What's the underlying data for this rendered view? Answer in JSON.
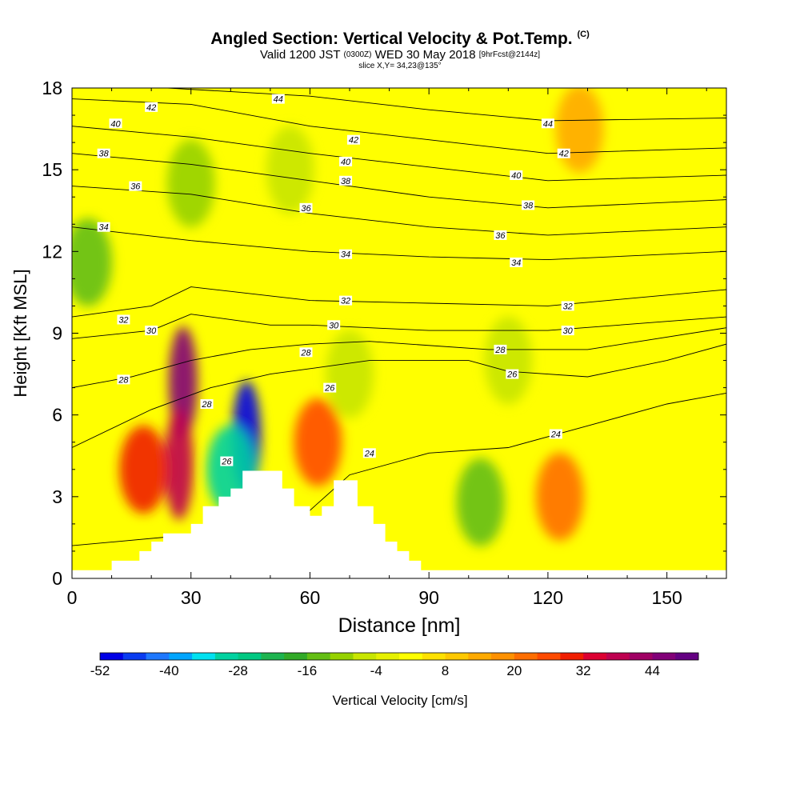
{
  "title": {
    "main": "Angled Section: Vertical Velocity & Pot.Temp.",
    "copyright": "(C)",
    "valid_prefix": "Valid 1200 JST",
    "utc_time": "(0300Z)",
    "valid_date": "WED 30 May 2018",
    "forecast": "[9hrFcst@2144z]",
    "slice": "slice X,Y= 34,23@135°"
  },
  "chart_data": {
    "type": "heatmap",
    "xlabel": "Distance [nm]",
    "ylabel": "Height [Kft MSL]",
    "xlim": [
      0,
      165
    ],
    "ylim": [
      0,
      18
    ],
    "x_ticks": [
      0,
      30,
      60,
      90,
      120,
      150
    ],
    "y_ticks": [
      0,
      3,
      6,
      9,
      12,
      15,
      18
    ],
    "colorbar": {
      "label": "Vertical Velocity [cm/s]",
      "ticks": [
        "-52",
        "-40",
        "-28",
        "-16",
        "-4",
        "8",
        "20",
        "32",
        "44"
      ],
      "colors": [
        "#0000e6",
        "#0a3cf0",
        "#1e78ff",
        "#00a5ff",
        "#00e1f0",
        "#00d2a0",
        "#00c882",
        "#1eb450",
        "#32aa28",
        "#64be14",
        "#96d200",
        "#c8e600",
        "#e6f000",
        "#ffff00",
        "#ffe100",
        "#ffc800",
        "#ffaa00",
        "#ff9100",
        "#ff6e00",
        "#ff4b00",
        "#f01e00",
        "#dc0032",
        "#be0050",
        "#a00064",
        "#820078",
        "#640082"
      ]
    },
    "velocity_features": [
      {
        "x": 4,
        "y": 11.6,
        "value": -14
      },
      {
        "x": 28,
        "y": 7.2,
        "value": 46
      },
      {
        "x": 27,
        "y": 4.2,
        "value": 36
      },
      {
        "x": 18,
        "y": 4.0,
        "value": 28
      },
      {
        "x": 44,
        "y": 5.2,
        "value": -52
      },
      {
        "x": 40,
        "y": 4.0,
        "value": -30
      },
      {
        "x": 62,
        "y": 5.0,
        "value": 24
      },
      {
        "x": 70,
        "y": 7.5,
        "value": -8
      },
      {
        "x": 103,
        "y": 2.8,
        "value": -14
      },
      {
        "x": 123,
        "y": 3.0,
        "value": 22
      },
      {
        "x": 110,
        "y": 8.0,
        "value": -8
      },
      {
        "x": 128,
        "y": 16.5,
        "value": 14
      },
      {
        "x": 30,
        "y": 14.5,
        "value": -10
      },
      {
        "x": 55,
        "y": 15.0,
        "value": -8
      }
    ],
    "isentropes": [
      {
        "value": 24,
        "points": [
          [
            0,
            1.2
          ],
          [
            30,
            1.6
          ],
          [
            60,
            2.5
          ],
          [
            70,
            3.8
          ],
          [
            90,
            4.6
          ],
          [
            110,
            4.8
          ],
          [
            130,
            5.6
          ],
          [
            150,
            6.4
          ],
          [
            165,
            6.8
          ]
        ]
      },
      {
        "value": 26,
        "points": [
          [
            0,
            4.8
          ],
          [
            20,
            6.2
          ],
          [
            35,
            7.0
          ],
          [
            50,
            7.5
          ],
          [
            60,
            7.7
          ],
          [
            75,
            8.0
          ],
          [
            100,
            8.0
          ],
          [
            110,
            7.6
          ],
          [
            130,
            7.4
          ],
          [
            150,
            8.0
          ],
          [
            165,
            8.6
          ]
        ]
      },
      {
        "value": 28,
        "points": [
          [
            0,
            7.0
          ],
          [
            15,
            7.4
          ],
          [
            30,
            8.0
          ],
          [
            45,
            8.4
          ],
          [
            60,
            8.6
          ],
          [
            75,
            8.7
          ],
          [
            105,
            8.4
          ],
          [
            130,
            8.4
          ],
          [
            165,
            9.2
          ]
        ]
      },
      {
        "value": 30,
        "points": [
          [
            0,
            8.8
          ],
          [
            20,
            9.1
          ],
          [
            30,
            9.7
          ],
          [
            50,
            9.3
          ],
          [
            60,
            9.3
          ],
          [
            90,
            9.1
          ],
          [
            120,
            9.1
          ],
          [
            165,
            9.6
          ]
        ]
      },
      {
        "value": 32,
        "points": [
          [
            0,
            9.6
          ],
          [
            20,
            10.0
          ],
          [
            30,
            10.7
          ],
          [
            60,
            10.2
          ],
          [
            90,
            10.1
          ],
          [
            120,
            10.0
          ],
          [
            165,
            10.6
          ]
        ]
      },
      {
        "value": 34,
        "points": [
          [
            0,
            12.9
          ],
          [
            30,
            12.4
          ],
          [
            60,
            12.0
          ],
          [
            90,
            11.8
          ],
          [
            120,
            11.7
          ],
          [
            165,
            12.0
          ]
        ]
      },
      {
        "value": 36,
        "points": [
          [
            0,
            14.4
          ],
          [
            30,
            14.1
          ],
          [
            60,
            13.4
          ],
          [
            90,
            12.9
          ],
          [
            120,
            12.6
          ],
          [
            165,
            12.9
          ]
        ]
      },
      {
        "value": 38,
        "points": [
          [
            0,
            15.6
          ],
          [
            30,
            15.2
          ],
          [
            60,
            14.6
          ],
          [
            90,
            14.0
          ],
          [
            120,
            13.6
          ],
          [
            165,
            13.9
          ]
        ]
      },
      {
        "value": 40,
        "points": [
          [
            0,
            16.6
          ],
          [
            30,
            16.2
          ],
          [
            60,
            15.6
          ],
          [
            90,
            15.1
          ],
          [
            120,
            14.6
          ],
          [
            165,
            14.8
          ]
        ]
      },
      {
        "value": 42,
        "points": [
          [
            0,
            17.6
          ],
          [
            30,
            17.4
          ],
          [
            60,
            16.6
          ],
          [
            90,
            16.1
          ],
          [
            120,
            15.6
          ],
          [
            165,
            15.8
          ]
        ]
      },
      {
        "value": 44,
        "points": [
          [
            0,
            18.2
          ],
          [
            60,
            17.7
          ],
          [
            90,
            17.2
          ],
          [
            120,
            16.8
          ],
          [
            165,
            16.9
          ]
        ]
      }
    ],
    "contour_labels": [
      {
        "text": "42",
        "x": 20,
        "y": 17.3
      },
      {
        "text": "44",
        "x": 52,
        "y": 17.6
      },
      {
        "text": "40",
        "x": 11,
        "y": 16.7
      },
      {
        "text": "44",
        "x": 120,
        "y": 16.7
      },
      {
        "text": "38",
        "x": 8,
        "y": 15.6
      },
      {
        "text": "42",
        "x": 71,
        "y": 16.1
      },
      {
        "text": "42",
        "x": 124,
        "y": 15.6
      },
      {
        "text": "40",
        "x": 69,
        "y": 15.3
      },
      {
        "text": "36",
        "x": 16,
        "y": 14.4
      },
      {
        "text": "38",
        "x": 69,
        "y": 14.6
      },
      {
        "text": "40",
        "x": 112,
        "y": 14.8
      },
      {
        "text": "36",
        "x": 59,
        "y": 13.6
      },
      {
        "text": "38",
        "x": 115,
        "y": 13.7
      },
      {
        "text": "34",
        "x": 8,
        "y": 12.9
      },
      {
        "text": "36",
        "x": 108,
        "y": 12.6
      },
      {
        "text": "34",
        "x": 69,
        "y": 11.9
      },
      {
        "text": "34",
        "x": 112,
        "y": 11.6
      },
      {
        "text": "32",
        "x": 69,
        "y": 10.2
      },
      {
        "text": "32",
        "x": 125,
        "y": 10.0
      },
      {
        "text": "32",
        "x": 13,
        "y": 9.5
      },
      {
        "text": "30",
        "x": 20,
        "y": 9.1
      },
      {
        "text": "30",
        "x": 66,
        "y": 9.3
      },
      {
        "text": "30",
        "x": 125,
        "y": 9.1
      },
      {
        "text": "28",
        "x": 59,
        "y": 8.3
      },
      {
        "text": "28",
        "x": 108,
        "y": 8.4
      },
      {
        "text": "26",
        "x": 111,
        "y": 7.5
      },
      {
        "text": "26",
        "x": 65,
        "y": 7.0
      },
      {
        "text": "28",
        "x": 13,
        "y": 7.3
      },
      {
        "text": "28",
        "x": 34,
        "y": 6.4
      },
      {
        "text": "24",
        "x": 122,
        "y": 5.3
      },
      {
        "text": "24",
        "x": 75,
        "y": 4.6
      },
      {
        "text": "26",
        "x": 39,
        "y": 4.3
      }
    ],
    "terrain": [
      [
        0,
        0.3
      ],
      [
        10,
        0.3
      ],
      [
        10,
        0.65
      ],
      [
        17,
        0.65
      ],
      [
        17,
        1.0
      ],
      [
        20,
        1.0
      ],
      [
        20,
        1.35
      ],
      [
        23,
        1.35
      ],
      [
        23,
        1.65
      ],
      [
        30,
        1.65
      ],
      [
        30,
        2.0
      ],
      [
        33,
        2.0
      ],
      [
        33,
        2.65
      ],
      [
        37,
        2.65
      ],
      [
        37,
        3.0
      ],
      [
        40,
        3.0
      ],
      [
        40,
        3.3
      ],
      [
        43,
        3.3
      ],
      [
        43,
        3.95
      ],
      [
        53,
        3.95
      ],
      [
        53,
        3.3
      ],
      [
        56,
        3.3
      ],
      [
        56,
        2.65
      ],
      [
        60,
        2.65
      ],
      [
        60,
        2.3
      ],
      [
        63,
        2.3
      ],
      [
        63,
        2.65
      ],
      [
        66,
        2.65
      ],
      [
        66,
        3.6
      ],
      [
        72,
        3.6
      ],
      [
        72,
        2.65
      ],
      [
        76,
        2.65
      ],
      [
        76,
        2.0
      ],
      [
        79,
        2.0
      ],
      [
        79,
        1.35
      ],
      [
        82,
        1.35
      ],
      [
        82,
        1.0
      ],
      [
        85,
        1.0
      ],
      [
        85,
        0.65
      ],
      [
        88,
        0.65
      ],
      [
        88,
        0.3
      ],
      [
        165,
        0.3
      ]
    ]
  }
}
